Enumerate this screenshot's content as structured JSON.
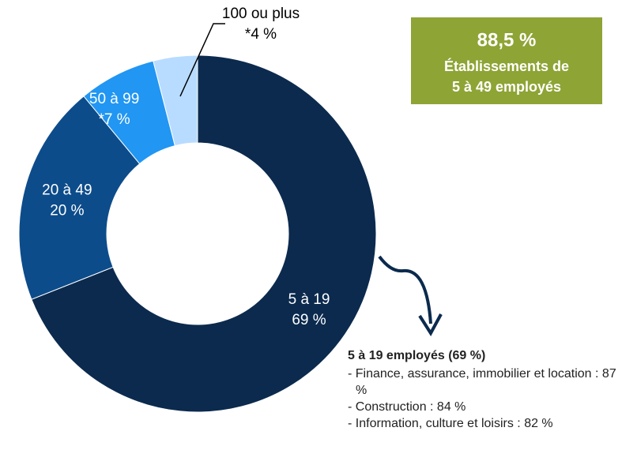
{
  "chart_data": {
    "type": "donut",
    "categories": [
      "5 à 19",
      "20 à 49",
      "50 à 99",
      "100 ou plus"
    ],
    "values": [
      69,
      20,
      7,
      4
    ],
    "value_labels": [
      "69 %",
      "20 %",
      "*7 %",
      "*4 %"
    ],
    "colors": [
      "#0b2a4e",
      "#0d4c8b",
      "#2196f3",
      "#b8dcff"
    ],
    "callout": {
      "value": "88,5 %",
      "lines": [
        "Établissements de",
        "5 à 49 employés"
      ],
      "color": "#8ea435"
    },
    "note": {
      "title": "5 à 19 employés (69 %)",
      "items": [
        "- Finance, assurance, immobilier et location : 87 %",
        "- Construction : 84 %",
        "- Information, culture et loisirs : 82 %"
      ]
    }
  }
}
